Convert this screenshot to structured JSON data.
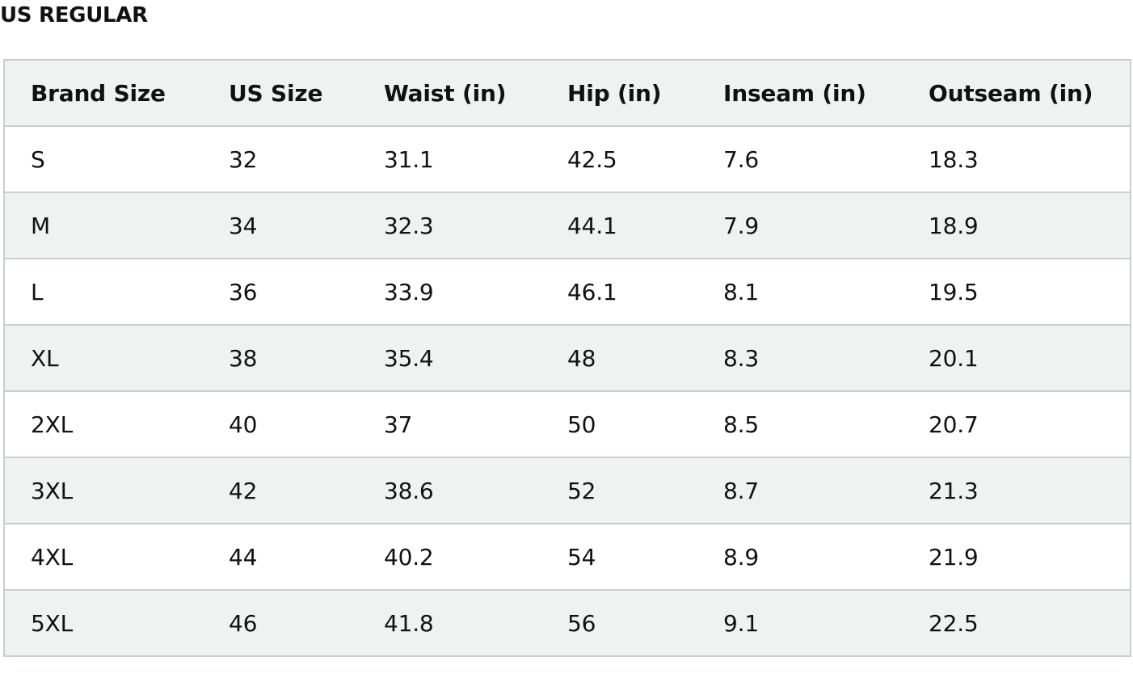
{
  "section_title": "US REGULAR",
  "table": {
    "headers": [
      "Brand Size",
      "US Size",
      "Waist (in)",
      "Hip (in)",
      "Inseam (in)",
      "Outseam (in)"
    ],
    "rows": [
      [
        "S",
        "32",
        "31.1",
        "42.5",
        "7.6",
        "18.3"
      ],
      [
        "M",
        "34",
        "32.3",
        "44.1",
        "7.9",
        "18.9"
      ],
      [
        "L",
        "36",
        "33.9",
        "46.1",
        "8.1",
        "19.5"
      ],
      [
        "XL",
        "38",
        "35.4",
        "48",
        "8.3",
        "20.1"
      ],
      [
        "2XL",
        "40",
        "37",
        "50",
        "8.5",
        "20.7"
      ],
      [
        "3XL",
        "42",
        "38.6",
        "52",
        "8.7",
        "21.3"
      ],
      [
        "4XL",
        "44",
        "40.2",
        "54",
        "8.9",
        "21.9"
      ],
      [
        "5XL",
        "46",
        "41.8",
        "56",
        "9.1",
        "22.5"
      ]
    ]
  },
  "colors": {
    "header_bg": "#f0f2f2",
    "stripe_bg": "#f0f2f2",
    "border": "#c9ced1",
    "text": "#111111"
  }
}
